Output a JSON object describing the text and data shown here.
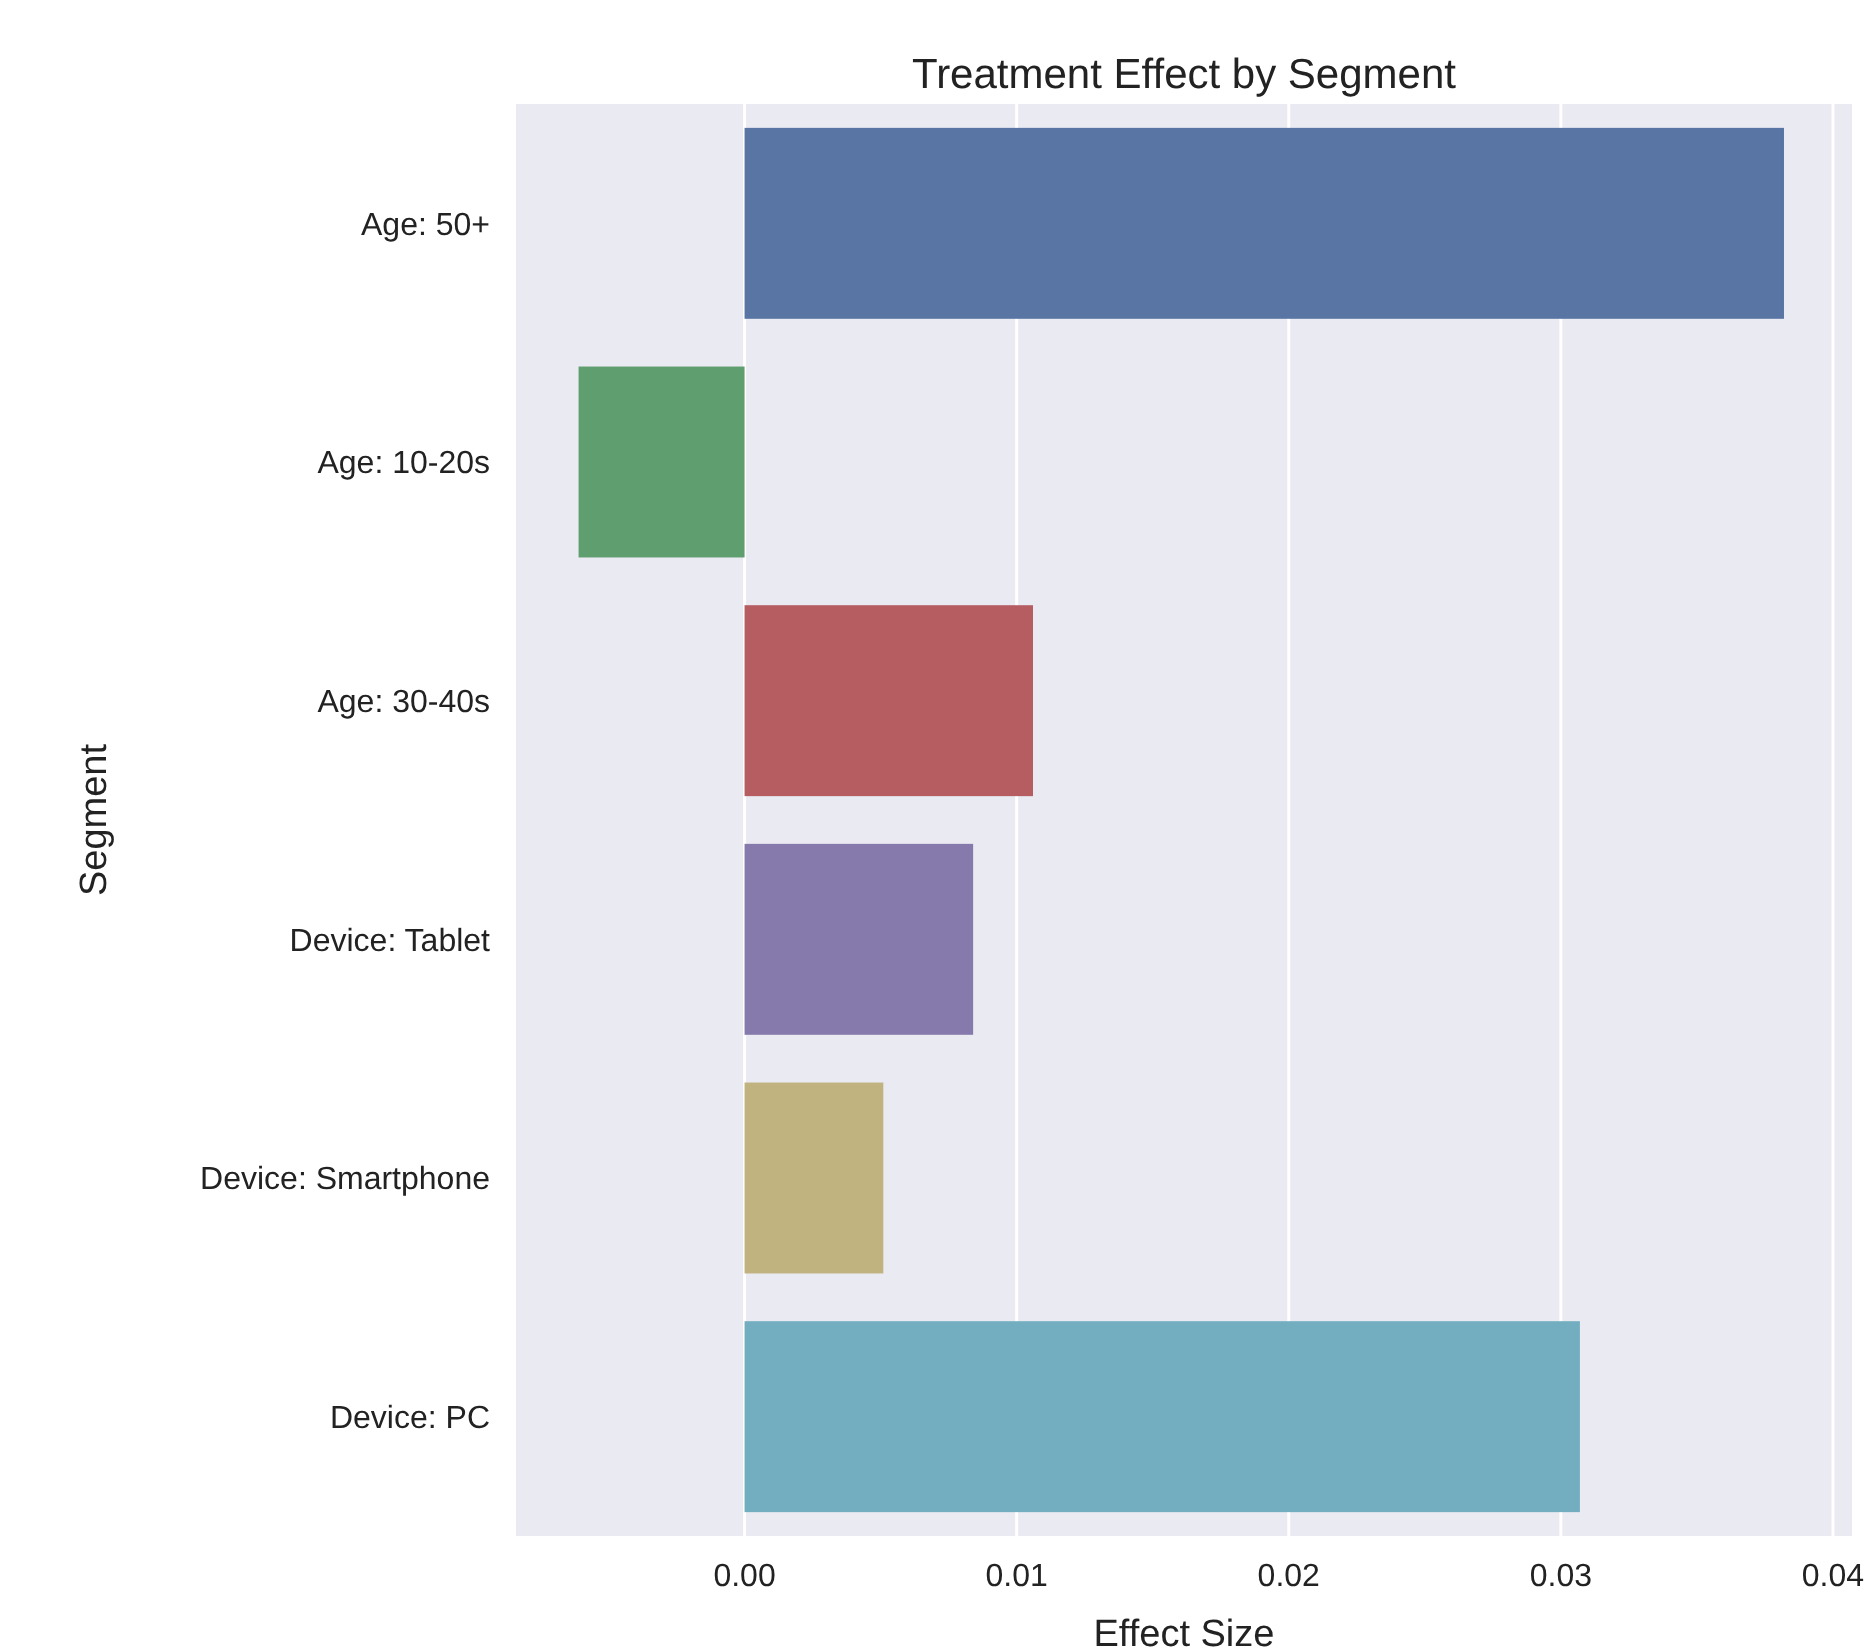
{
  "chart_data": {
    "type": "bar",
    "orientation": "horizontal",
    "title": "Treatment Effect by Segment",
    "xlabel": "Effect Size",
    "ylabel": "Segment",
    "categories": [
      "Age: 50+",
      "Age: 10-20s",
      "Age: 30-40s",
      "Device: Tablet",
      "Device: Smartphone",
      "Device: PC"
    ],
    "values": [
      0.0382,
      -0.0061,
      0.0106,
      0.0084,
      0.0051,
      0.0307
    ],
    "colors": [
      "#5875a4",
      "#5f9e6e",
      "#b55d60",
      "#857aab",
      "#c1b37f",
      "#72aec0"
    ],
    "xlim": [
      -0.0084,
      0.0407
    ],
    "xticks": [
      {
        "value": 0,
        "label": "0.00"
      },
      {
        "value": 0.01,
        "label": "0.01"
      },
      {
        "value": 0.02,
        "label": "0.02"
      },
      {
        "value": 0.03,
        "label": "0.03"
      },
      {
        "value": 0.04,
        "label": "0.04"
      }
    ],
    "grid": "x"
  }
}
